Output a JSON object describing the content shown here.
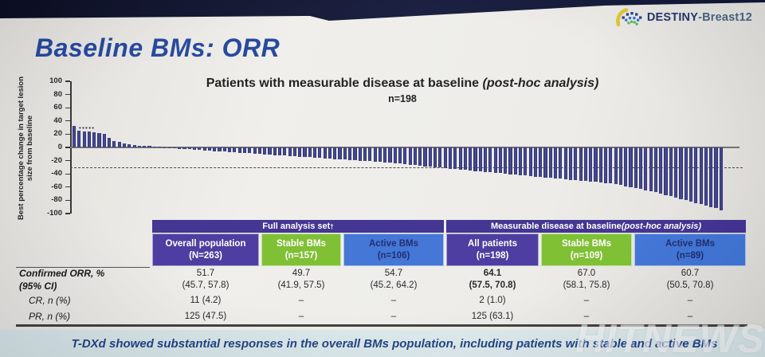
{
  "header": {
    "title": "Baseline BMs: ORR",
    "logo": {
      "brand_primary": "DESTINY",
      "brand_secondary": "-Breast12"
    }
  },
  "chart_data": {
    "type": "bar",
    "chart_kind": "waterfall",
    "title_main": "Patients with measurable disease at baseline ",
    "title_italic": "(post-hoc analysis)",
    "subtitle": "n=198",
    "ylabel": "Best percentage change in target lesion size from baseline",
    "ylim": [
      -100,
      100
    ],
    "yticks": [
      100,
      80,
      60,
      40,
      20,
      0,
      -20,
      -40,
      -60,
      -80,
      -100
    ],
    "reference_line_y": -30,
    "zero_line": true,
    "grid": false,
    "bar_color": "#23276b",
    "annotation_dots": "•••••",
    "values": [
      33,
      25,
      24,
      24,
      23,
      22,
      20,
      15,
      10,
      8,
      6,
      5,
      4,
      3,
      2,
      2,
      1,
      0.5,
      -0.5,
      -1,
      -1.5,
      -2,
      -2.5,
      -3,
      -3.5,
      -4,
      -4.5,
      -5,
      -5.5,
      -6,
      -6.5,
      -7,
      -7.5,
      -8,
      -8.5,
      -9,
      -9.5,
      -10,
      -10.5,
      -11,
      -11.5,
      -12,
      -12.5,
      -13,
      -13.5,
      -14,
      -14.5,
      -15,
      -15.5,
      -16,
      -16.5,
      -17,
      -17.5,
      -18,
      -18.5,
      -19,
      -19.5,
      -20,
      -20.5,
      -21,
      -21.5,
      -22,
      -22.5,
      -23,
      -23.5,
      -24,
      -25,
      -26,
      -27,
      -28,
      -29,
      -29.5,
      -30,
      -30.7,
      -31.4,
      -32.1,
      -32.8,
      -33.5,
      -34.2,
      -34.9,
      -35.6,
      -36.3,
      -37,
      -37.7,
      -38.4,
      -39.1,
      -39.8,
      -40.5,
      -41.2,
      -41.9,
      -42.6,
      -43.3,
      -44,
      -44.7,
      -45.4,
      -46.1,
      -46.8,
      -47.5,
      -48.2,
      -48.9,
      -49.6,
      -50.3,
      -51,
      -51.7,
      -52.4,
      -53.1,
      -53.8,
      -54.5,
      -55.5,
      -57,
      -58.5,
      -60,
      -61.5,
      -63,
      -64.5,
      -66,
      -68,
      -70,
      -72,
      -74,
      -76,
      -78,
      -80,
      -82,
      -84,
      -86,
      -88,
      -90,
      -92,
      -95
    ]
  },
  "table": {
    "group_headers": [
      {
        "label_main": "Full analysis set",
        "label_sup": "†",
        "label_italic": "",
        "span": 3
      },
      {
        "label_main": "Measurable disease at baseline ",
        "label_sup": "",
        "label_italic": "(post-hoc analysis)",
        "span": 3
      }
    ],
    "columns": [
      {
        "label": "Overall population",
        "sub": "(N=263)",
        "bg": "#44349c",
        "fg": "#ffffff"
      },
      {
        "label": "Stable BMs",
        "sub": "(n=157)",
        "bg": "#79bd2a",
        "fg": "#ffffff"
      },
      {
        "label": "Active BMs",
        "sub": "(n=106)",
        "bg": "#3a70d4",
        "fg": "#16246b"
      },
      {
        "label": "All patients",
        "sub": "(n=198)",
        "bg": "#44349c",
        "fg": "#ffffff"
      },
      {
        "label": "Stable BMs",
        "sub": "(n=109)",
        "bg": "#79bd2a",
        "fg": "#ffffff"
      },
      {
        "label": "Active BMs",
        "sub": "(n=89)",
        "bg": "#3a70d4",
        "fg": "#16246b"
      }
    ],
    "rows": [
      {
        "label": "Confirmed ORR, %",
        "label_line2": "(95% CI)",
        "style": "bolditalic",
        "cells": [
          {
            "line1": "51.7",
            "line2": "(45.7, 57.8)",
            "bold": false
          },
          {
            "line1": "49.7",
            "line2": "(41.9, 57.5)",
            "bold": false
          },
          {
            "line1": "54.7",
            "line2": "(45.2, 64.2)",
            "bold": false
          },
          {
            "line1": "64.1",
            "line2": "(57.5, 70.8)",
            "bold": true
          },
          {
            "line1": "67.0",
            "line2": "(58.1, 75.8)",
            "bold": false
          },
          {
            "line1": "60.7",
            "line2": "(50.5, 70.8)",
            "bold": false
          }
        ]
      },
      {
        "label": "CR, n (%)",
        "label_line2": "",
        "style": "italic",
        "cells": [
          {
            "line1": "11 (4.2)",
            "line2": "",
            "bold": false
          },
          {
            "line1": "–",
            "line2": "",
            "bold": false
          },
          {
            "line1": "–",
            "line2": "",
            "bold": false
          },
          {
            "line1": "2 (1.0)",
            "line2": "",
            "bold": false
          },
          {
            "line1": "–",
            "line2": "",
            "bold": false
          },
          {
            "line1": "–",
            "line2": "",
            "bold": false
          }
        ]
      },
      {
        "label": "PR, n (%)",
        "label_line2": "",
        "style": "italic",
        "cells": [
          {
            "line1": "125 (47.5)",
            "line2": "",
            "bold": false
          },
          {
            "line1": "–",
            "line2": "",
            "bold": false
          },
          {
            "line1": "–",
            "line2": "",
            "bold": false
          },
          {
            "line1": "125 (63.1)",
            "line2": "",
            "bold": false
          },
          {
            "line1": "–",
            "line2": "",
            "bold": false
          },
          {
            "line1": "–",
            "line2": "",
            "bold": false
          }
        ]
      }
    ]
  },
  "banner": {
    "text": "T-DXd showed substantial responses in the overall BMs population, including patients with stable and active BMs"
  },
  "watermark": {
    "text": "HITNEWS"
  }
}
